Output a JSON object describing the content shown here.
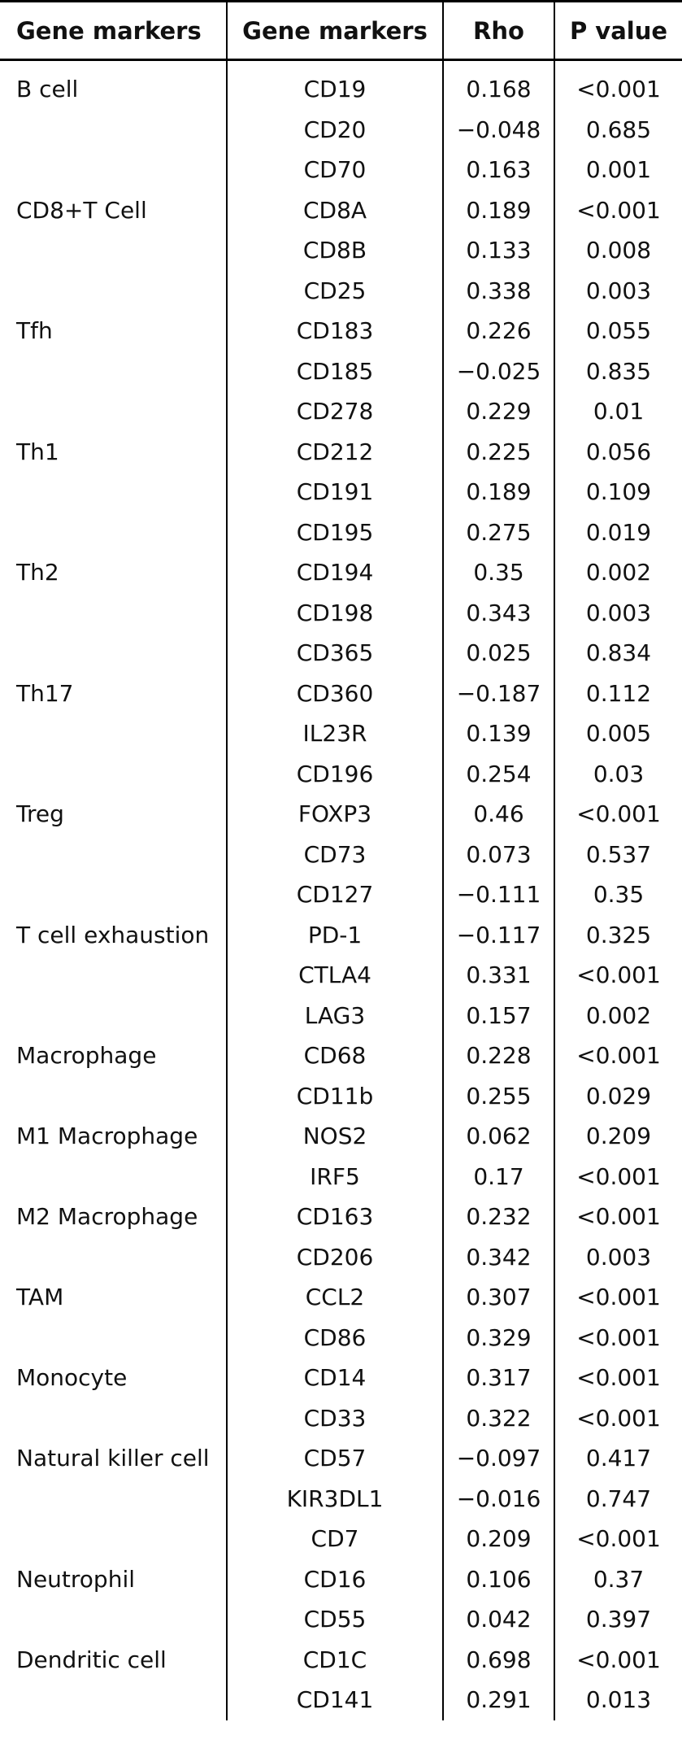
{
  "header": [
    "Gene markers",
    "Gene markers",
    "Rho",
    "P value"
  ],
  "rows": [
    [
      "B cell",
      "CD19",
      "0.168",
      "<0.001"
    ],
    [
      "",
      "CD20",
      "−0.048",
      "0.685"
    ],
    [
      "",
      "CD70",
      "0.163",
      "0.001"
    ],
    [
      "CD8+T Cell",
      "CD8A",
      "0.189",
      "<0.001"
    ],
    [
      "",
      "CD8B",
      "0.133",
      "0.008"
    ],
    [
      "",
      "CD25",
      "0.338",
      "0.003"
    ],
    [
      "Tfh",
      "CD183",
      "0.226",
      "0.055"
    ],
    [
      "",
      "CD185",
      "−0.025",
      "0.835"
    ],
    [
      "",
      "CD278",
      "0.229",
      "0.01"
    ],
    [
      "Th1",
      "CD212",
      "0.225",
      "0.056"
    ],
    [
      "",
      "CD191",
      "0.189",
      "0.109"
    ],
    [
      "",
      "CD195",
      "0.275",
      "0.019"
    ],
    [
      "Th2",
      "CD194",
      "0.35",
      "0.002"
    ],
    [
      "",
      "CD198",
      "0.343",
      "0.003"
    ],
    [
      "",
      "CD365",
      "0.025",
      "0.834"
    ],
    [
      "Th17",
      "CD360",
      "−0.187",
      "0.112"
    ],
    [
      "",
      "IL23R",
      "0.139",
      "0.005"
    ],
    [
      "",
      "CD196",
      "0.254",
      "0.03"
    ],
    [
      "Treg",
      "FOXP3",
      "0.46",
      "<0.001"
    ],
    [
      "",
      "CD73",
      "0.073",
      "0.537"
    ],
    [
      "",
      "CD127",
      "−0.111",
      "0.35"
    ],
    [
      "T cell exhaustion",
      "PD-1",
      "−0.117",
      "0.325"
    ],
    [
      "",
      "CTLA4",
      "0.331",
      "<0.001"
    ],
    [
      "",
      "LAG3",
      "0.157",
      "0.002"
    ],
    [
      "Macrophage",
      "CD68",
      "0.228",
      "<0.001"
    ],
    [
      "",
      "CD11b",
      "0.255",
      "0.029"
    ],
    [
      "M1 Macrophage",
      "NOS2",
      "0.062",
      "0.209"
    ],
    [
      "",
      "IRF5",
      "0.17",
      "<0.001"
    ],
    [
      "M2 Macrophage",
      "CD163",
      "0.232",
      "<0.001"
    ],
    [
      "",
      "CD206",
      "0.342",
      "0.003"
    ],
    [
      "TAM",
      "CCL2",
      "0.307",
      "<0.001"
    ],
    [
      "",
      "CD86",
      "0.329",
      "<0.001"
    ],
    [
      "Monocyte",
      "CD14",
      "0.317",
      "<0.001"
    ],
    [
      "",
      "CD33",
      "0.322",
      "<0.001"
    ],
    [
      "Natural killer cell",
      "CD57",
      "−0.097",
      "0.417"
    ],
    [
      "",
      "KIR3DL1",
      "−0.016",
      "0.747"
    ],
    [
      "",
      "CD7",
      "0.209",
      "<0.001"
    ],
    [
      "Neutrophil",
      "CD16",
      "0.106",
      "0.37"
    ],
    [
      "",
      "CD55",
      "0.042",
      "0.397"
    ],
    [
      "Dendritic cell",
      "CD1C",
      "0.698",
      "<0.001"
    ],
    [
      "",
      "CD141",
      "0.291",
      "0.013"
    ]
  ]
}
